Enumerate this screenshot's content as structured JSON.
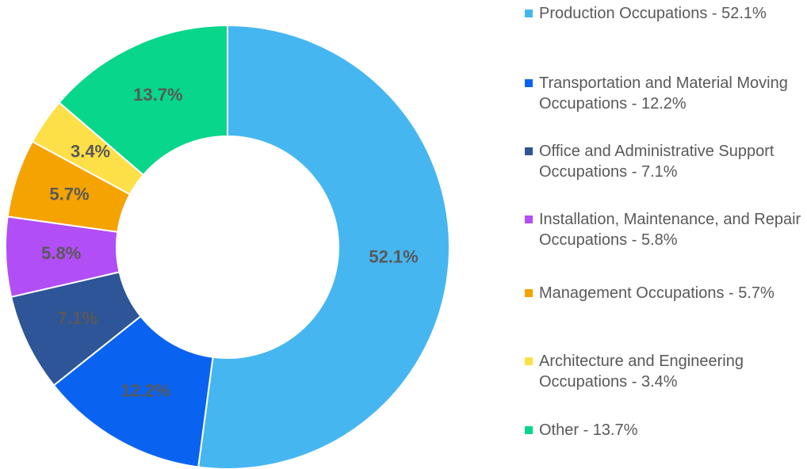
{
  "chart_data": {
    "type": "donut",
    "categories": [
      "Production Occupations - 52.1%",
      "Transportation and Material Moving Occupations - 12.2%",
      "Office and Administrative Support Occupations - 7.1%",
      "Installation, Maintenance, and Repair Occupations - 5.8%",
      "Management Occupations - 5.7%",
      "Architecture and Engineering Occupations - 3.4%",
      "Other - 13.7%"
    ],
    "values": [
      52.1,
      12.2,
      7.1,
      5.8,
      5.7,
      3.4,
      13.7
    ],
    "value_labels": [
      "52.1%",
      "12.2%",
      "7.1%",
      "5.8%",
      "5.7%",
      "3.4%",
      "13.7%"
    ],
    "colors": [
      "#46b6f0",
      "#0a63f0",
      "#2e5597",
      "#b24ef5",
      "#f5a300",
      "#fde047",
      "#08d68a"
    ],
    "legend": "right"
  }
}
